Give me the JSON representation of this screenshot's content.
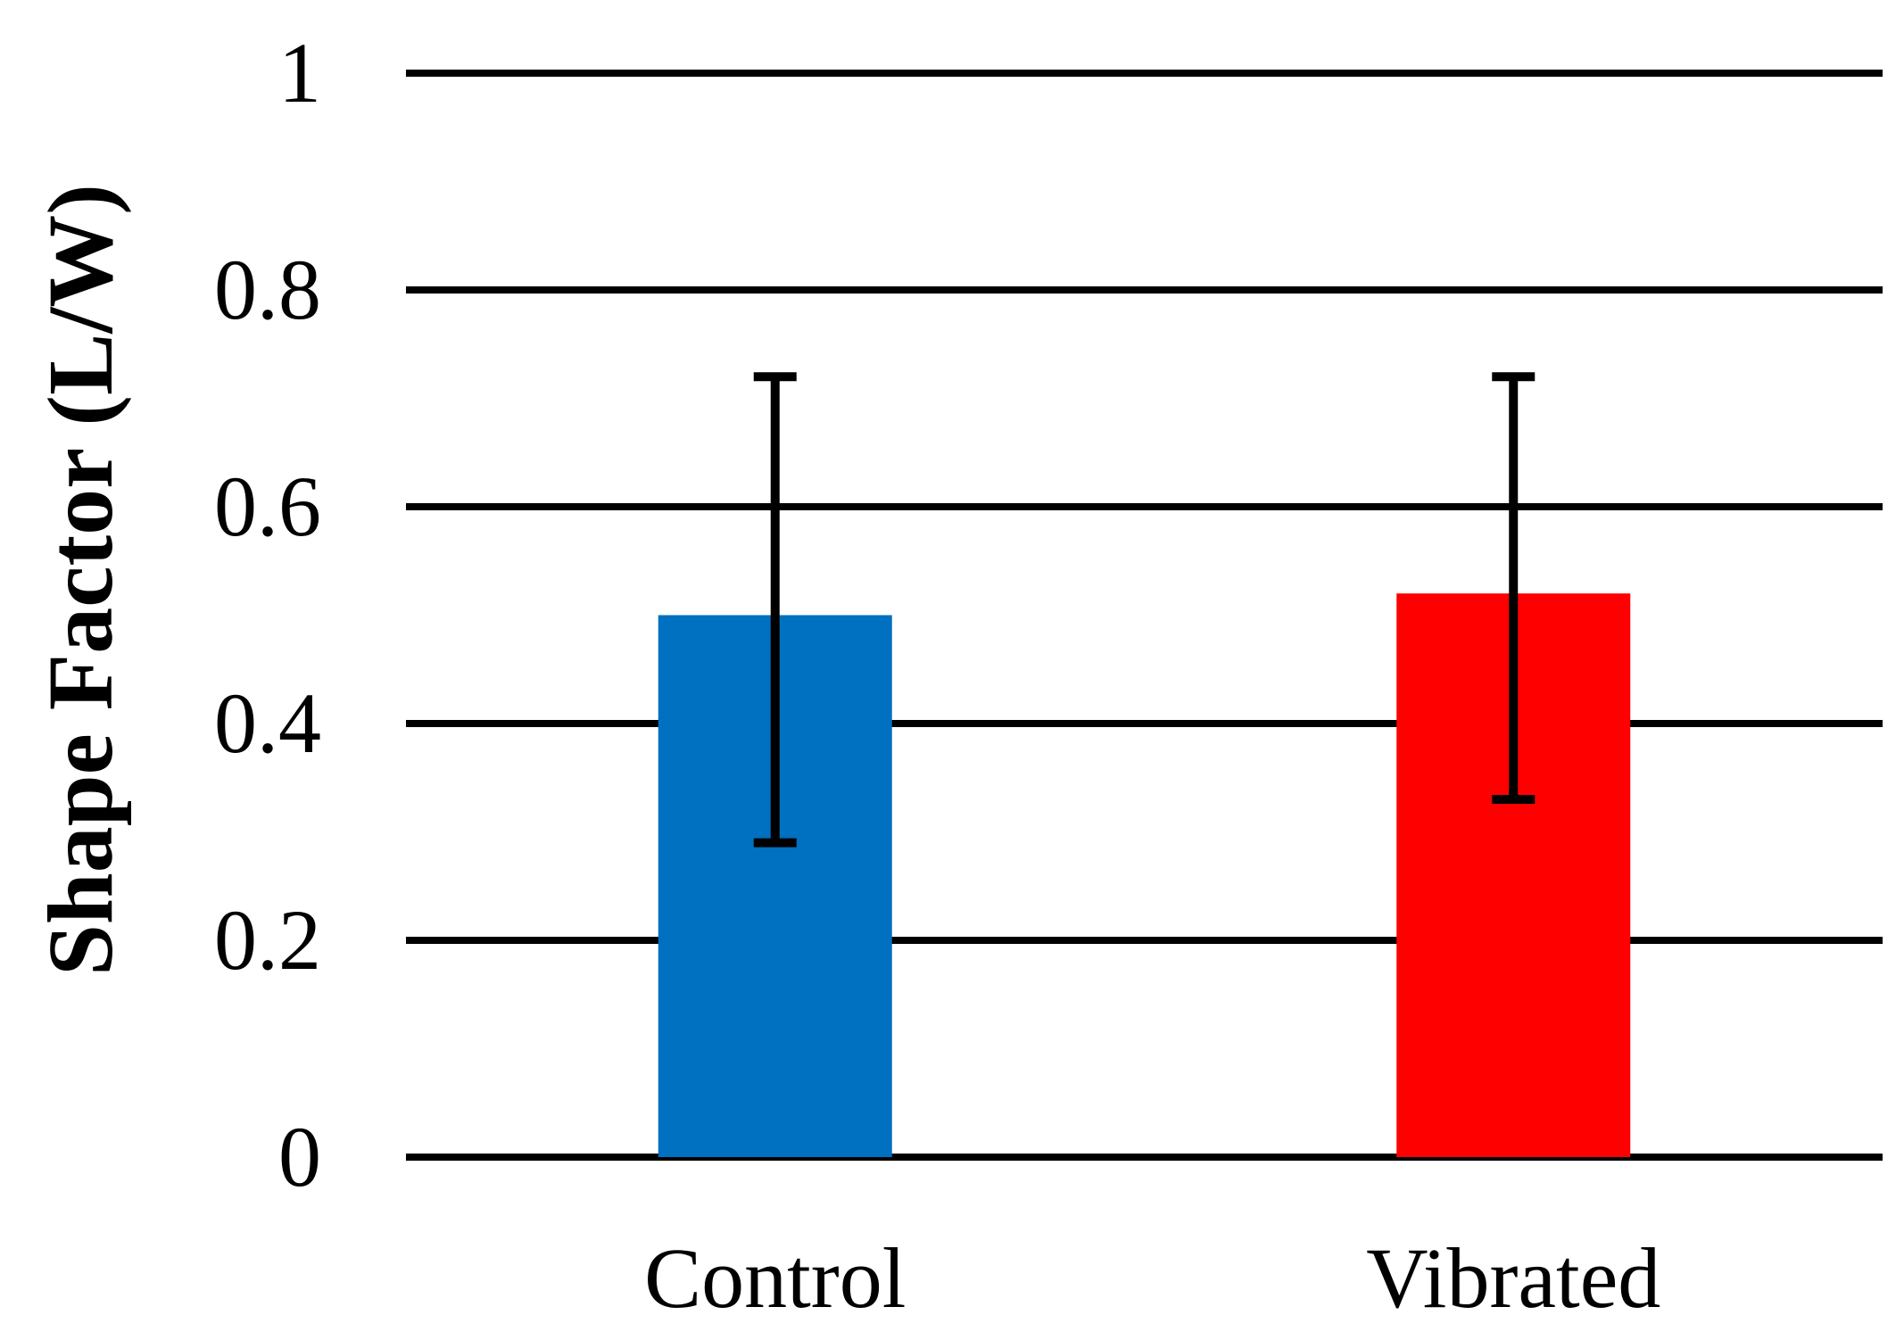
{
  "chart_data": {
    "type": "bar",
    "title": "",
    "xlabel": "",
    "ylabel": "Shape Factor (L/W)",
    "ylim": [
      0,
      1
    ],
    "yticks": [
      0,
      0.2,
      0.4,
      0.6,
      0.8,
      1
    ],
    "ytick_labels": [
      "0",
      "0.2",
      "0.4",
      "0.6",
      "0.8",
      "1"
    ],
    "grid": true,
    "categories": [
      "Control",
      "Vibrated"
    ],
    "values": [
      0.5,
      0.52
    ],
    "error_upper": [
      0.72,
      0.72
    ],
    "error_lower": [
      0.29,
      0.33
    ],
    "colors": [
      "#0070C0",
      "#FF0000"
    ]
  }
}
